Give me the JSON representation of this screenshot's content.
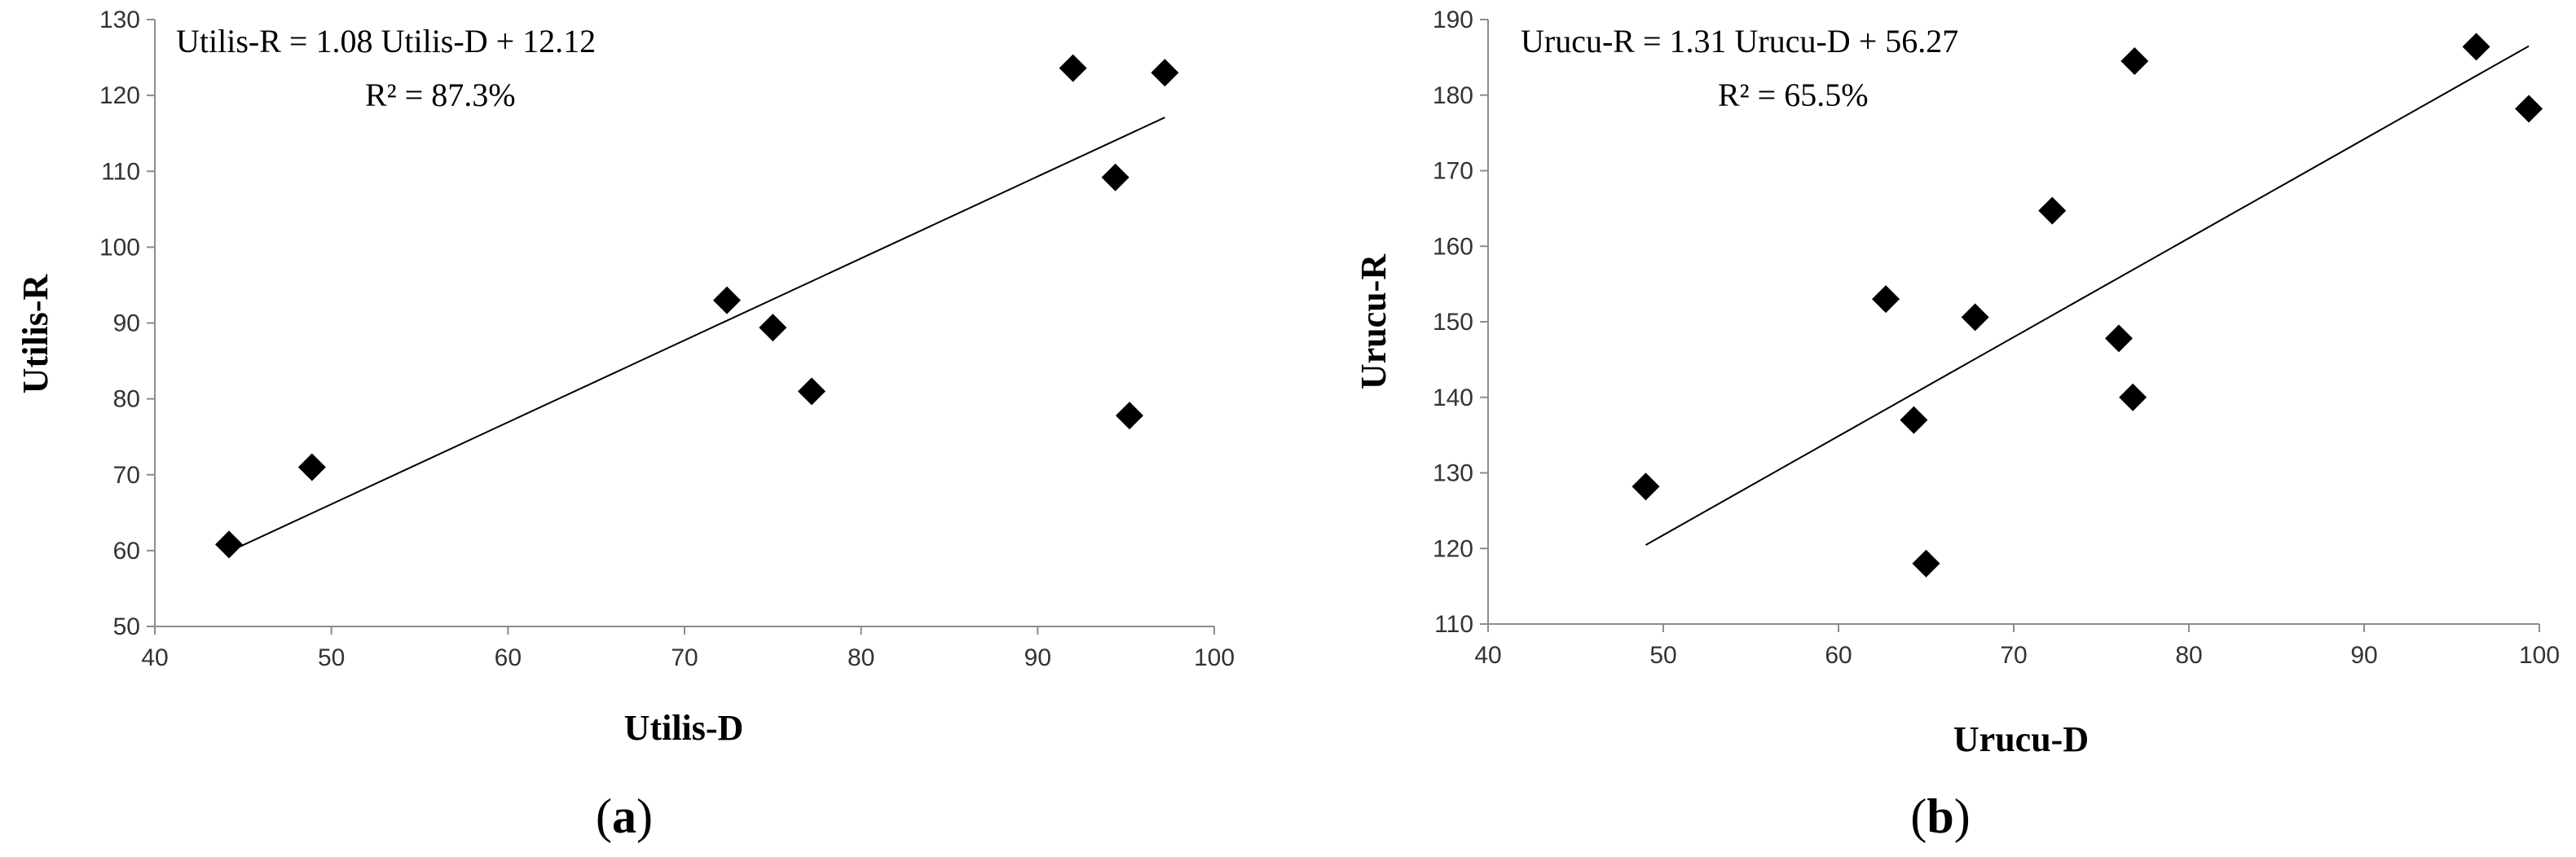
{
  "chart_data": [
    {
      "type": "scatter",
      "panel_caption": "a",
      "xlabel": "Utilis-D",
      "ylabel": "Utilis-R",
      "xlim": [
        40,
        100
      ],
      "ylim": [
        50,
        130
      ],
      "xticks": [
        40,
        50,
        60,
        70,
        80,
        90,
        100
      ],
      "yticks": [
        50,
        60,
        70,
        80,
        90,
        100,
        110,
        120,
        130
      ],
      "equation": "Utilis-R = 1.08 Utilis-D  +  12.12",
      "r_squared": "R² = 87.3%",
      "marker": "diamond",
      "grid": false,
      "x": [
        44.2,
        48.9,
        72.4,
        75.0,
        77.2,
        92.0,
        94.4,
        95.2,
        97.2
      ],
      "y": [
        60.8,
        71.0,
        93.0,
        89.4,
        81.0,
        123.6,
        109.2,
        77.8,
        123.0
      ],
      "trendline": {
        "slope": 1.08,
        "intercept": 12.12,
        "x_range": [
          44.2,
          97.2
        ]
      }
    },
    {
      "type": "scatter",
      "panel_caption": "b",
      "xlabel": "Urucu-D",
      "ylabel": "Urucu-R",
      "xlim": [
        40,
        100
      ],
      "ylim": [
        110,
        190
      ],
      "xticks": [
        40,
        50,
        60,
        70,
        80,
        90,
        100
      ],
      "yticks": [
        110,
        120,
        130,
        140,
        150,
        160,
        170,
        180,
        190
      ],
      "equation": "Urucu-R = 1.31 Urucu-D + 56.27",
      "r_squared": "R² = 65.5%",
      "marker": "diamond",
      "grid": false,
      "x": [
        49.0,
        62.7,
        64.3,
        65.0,
        67.8,
        72.2,
        76.0,
        76.8,
        76.9,
        96.4,
        99.4
      ],
      "y": [
        128.2,
        153.0,
        137.0,
        118.0,
        150.6,
        164.7,
        147.8,
        140.0,
        184.5,
        186.4,
        178.2
      ],
      "trendline": {
        "slope": 1.31,
        "intercept": 56.27,
        "x_range": [
          49.0,
          99.4
        ]
      }
    }
  ]
}
